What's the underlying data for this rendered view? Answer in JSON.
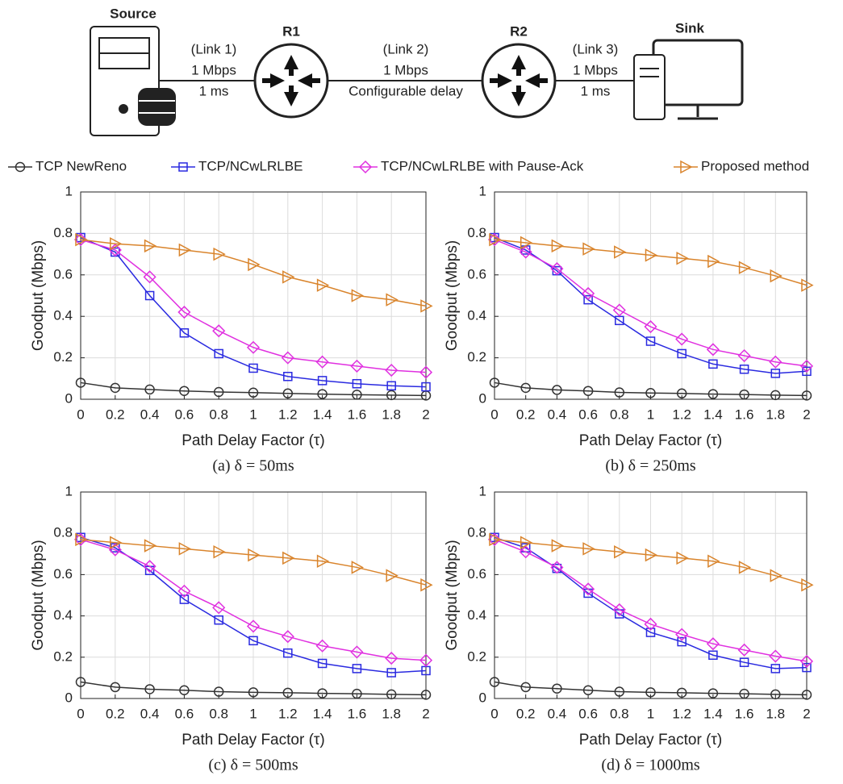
{
  "diagram": {
    "nodes": {
      "source": "Source",
      "r1": "R1",
      "r2": "R2",
      "sink": "Sink"
    },
    "links": [
      {
        "name": "(Link 1)",
        "rate": "1 Mbps",
        "delay": "1 ms"
      },
      {
        "name": "(Link 2)",
        "rate": "1 Mbps",
        "delay": "Configurable delay"
      },
      {
        "name": "(Link 3)",
        "rate": "1 Mbps",
        "delay": "1 ms"
      }
    ]
  },
  "chart_data": [
    {
      "type": "line",
      "title": "(a) δ = 50ms",
      "xlabel": "Path Delay Factor (τ)",
      "ylabel": "Goodput (Mbps)",
      "x": [
        0,
        0.2,
        0.4,
        0.6,
        0.8,
        1,
        1.2,
        1.4,
        1.6,
        1.8,
        2
      ],
      "xlim": [
        0,
        2
      ],
      "xticks": [
        0,
        0.2,
        0.4,
        0.6,
        0.8,
        1,
        1.2,
        1.4,
        1.6,
        1.8,
        2
      ],
      "ylim": [
        0,
        1
      ],
      "yticks": [
        0,
        0.2,
        0.4,
        0.6,
        0.8,
        1
      ],
      "grid": true,
      "series": [
        {
          "name": "TCP NewReno",
          "color": "#333333",
          "marker": "circle",
          "values": [
            0.08,
            0.055,
            0.047,
            0.04,
            0.035,
            0.032,
            0.028,
            0.025,
            0.022,
            0.02,
            0.018
          ]
        },
        {
          "name": "TCP/NCwLRLBE",
          "color": "#2a2ae0",
          "marker": "square",
          "values": [
            0.78,
            0.71,
            0.5,
            0.32,
            0.22,
            0.15,
            0.11,
            0.09,
            0.075,
            0.065,
            0.06
          ]
        },
        {
          "name": "TCP/NCwLRLBE with Pause-Ack",
          "color": "#e030e0",
          "marker": "diamond",
          "values": [
            0.77,
            0.72,
            0.59,
            0.42,
            0.33,
            0.25,
            0.2,
            0.18,
            0.16,
            0.14,
            0.13
          ]
        },
        {
          "name": "Proposed method",
          "color": "#d9842c",
          "marker": "triangle",
          "values": [
            0.77,
            0.75,
            0.74,
            0.72,
            0.7,
            0.65,
            0.59,
            0.55,
            0.5,
            0.48,
            0.45
          ]
        }
      ]
    },
    {
      "type": "line",
      "title": "(b) δ = 250ms",
      "xlabel": "Path Delay Factor (τ)",
      "ylabel": "Goodput (Mbps)",
      "x": [
        0,
        0.2,
        0.4,
        0.6,
        0.8,
        1,
        1.2,
        1.4,
        1.6,
        1.8,
        2
      ],
      "xlim": [
        0,
        2
      ],
      "xticks": [
        0,
        0.2,
        0.4,
        0.6,
        0.8,
        1,
        1.2,
        1.4,
        1.6,
        1.8,
        2
      ],
      "ylim": [
        0,
        1
      ],
      "yticks": [
        0,
        0.2,
        0.4,
        0.6,
        0.8,
        1
      ],
      "grid": true,
      "series": [
        {
          "color": "#333333",
          "marker": "circle",
          "values": [
            0.08,
            0.055,
            0.045,
            0.04,
            0.033,
            0.03,
            0.028,
            0.025,
            0.023,
            0.02,
            0.018
          ]
        },
        {
          "color": "#2a2ae0",
          "marker": "square",
          "values": [
            0.78,
            0.72,
            0.62,
            0.48,
            0.38,
            0.28,
            0.22,
            0.17,
            0.145,
            0.125,
            0.135
          ]
        },
        {
          "color": "#e030e0",
          "marker": "diamond",
          "values": [
            0.77,
            0.71,
            0.63,
            0.51,
            0.43,
            0.35,
            0.29,
            0.24,
            0.21,
            0.18,
            0.16
          ]
        },
        {
          "color": "#d9842c",
          "marker": "triangle",
          "values": [
            0.77,
            0.755,
            0.74,
            0.725,
            0.71,
            0.695,
            0.68,
            0.665,
            0.635,
            0.595,
            0.55
          ]
        }
      ]
    },
    {
      "type": "line",
      "title": "(c) δ = 500ms",
      "xlabel": "Path Delay Factor (τ)",
      "ylabel": "Goodput (Mbps)",
      "x": [
        0,
        0.2,
        0.4,
        0.6,
        0.8,
        1,
        1.2,
        1.4,
        1.6,
        1.8,
        2
      ],
      "xlim": [
        0,
        2
      ],
      "xticks": [
        0,
        0.2,
        0.4,
        0.6,
        0.8,
        1,
        1.2,
        1.4,
        1.6,
        1.8,
        2
      ],
      "ylim": [
        0,
        1
      ],
      "yticks": [
        0,
        0.2,
        0.4,
        0.6,
        0.8,
        1
      ],
      "grid": true,
      "series": [
        {
          "color": "#333333",
          "marker": "circle",
          "values": [
            0.08,
            0.055,
            0.045,
            0.04,
            0.033,
            0.03,
            0.028,
            0.025,
            0.023,
            0.02,
            0.018
          ]
        },
        {
          "color": "#2a2ae0",
          "marker": "square",
          "values": [
            0.78,
            0.73,
            0.62,
            0.48,
            0.38,
            0.28,
            0.22,
            0.17,
            0.145,
            0.125,
            0.135
          ]
        },
        {
          "color": "#e030e0",
          "marker": "diamond",
          "values": [
            0.77,
            0.72,
            0.64,
            0.52,
            0.44,
            0.35,
            0.3,
            0.255,
            0.225,
            0.195,
            0.185
          ]
        },
        {
          "color": "#d9842c",
          "marker": "triangle",
          "values": [
            0.77,
            0.755,
            0.74,
            0.725,
            0.71,
            0.695,
            0.68,
            0.665,
            0.635,
            0.595,
            0.55
          ]
        }
      ]
    },
    {
      "type": "line",
      "title": "(d) δ = 1000ms",
      "xlabel": "Path Delay Factor (τ)",
      "ylabel": "Goodput (Mbps)",
      "x": [
        0,
        0.2,
        0.4,
        0.6,
        0.8,
        1,
        1.2,
        1.4,
        1.6,
        1.8,
        2
      ],
      "xlim": [
        0,
        2
      ],
      "xticks": [
        0,
        0.2,
        0.4,
        0.6,
        0.8,
        1,
        1.2,
        1.4,
        1.6,
        1.8,
        2
      ],
      "ylim": [
        0,
        1
      ],
      "yticks": [
        0,
        0.2,
        0.4,
        0.6,
        0.8,
        1
      ],
      "grid": true,
      "series": [
        {
          "color": "#333333",
          "marker": "circle",
          "values": [
            0.08,
            0.055,
            0.048,
            0.04,
            0.033,
            0.03,
            0.028,
            0.025,
            0.023,
            0.02,
            0.018
          ]
        },
        {
          "color": "#2a2ae0",
          "marker": "square",
          "values": [
            0.78,
            0.73,
            0.63,
            0.51,
            0.41,
            0.32,
            0.275,
            0.21,
            0.175,
            0.145,
            0.15
          ]
        },
        {
          "color": "#e030e0",
          "marker": "diamond",
          "values": [
            0.77,
            0.71,
            0.635,
            0.53,
            0.43,
            0.36,
            0.31,
            0.265,
            0.235,
            0.205,
            0.18
          ]
        },
        {
          "color": "#d9842c",
          "marker": "triangle",
          "values": [
            0.77,
            0.755,
            0.74,
            0.725,
            0.71,
            0.695,
            0.68,
            0.665,
            0.635,
            0.595,
            0.55
          ]
        }
      ]
    }
  ]
}
